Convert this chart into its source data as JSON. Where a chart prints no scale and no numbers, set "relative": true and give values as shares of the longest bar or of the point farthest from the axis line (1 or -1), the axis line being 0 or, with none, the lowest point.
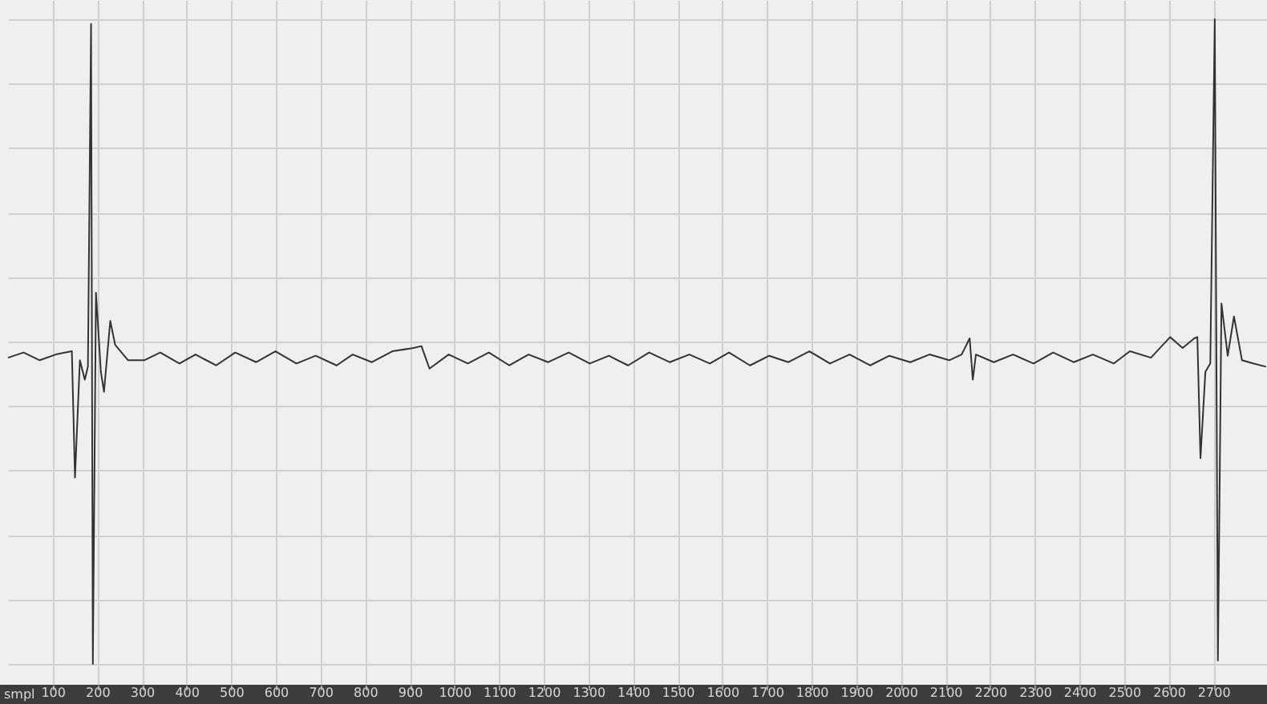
{
  "chart_data": {
    "type": "line",
    "relative": true,
    "xlabel": "smpl",
    "xlim": [
      0,
      2820
    ],
    "xticks": [
      100,
      200,
      300,
      400,
      500,
      600,
      700,
      800,
      900,
      1000,
      1100,
      1200,
      1300,
      1400,
      1500,
      1600,
      1700,
      1800,
      1900,
      2000,
      2100,
      2200,
      2300,
      2400,
      2500,
      2600,
      2700
    ],
    "grid": true,
    "series": [
      {
        "color": "#333333",
        "x": [
          0,
          35,
          71,
          107,
          143,
          150,
          161,
          172,
          179,
          186,
          190,
          197,
          208,
          215,
          229,
          240,
          269,
          305,
          341,
          384,
          420,
          466,
          509,
          556,
          599,
          646,
          689,
          736,
          772,
          815,
          861,
          908,
          926,
          944,
          987,
          1030,
          1077,
          1123,
          1166,
          1210,
          1256,
          1303,
          1346,
          1389,
          1436,
          1482,
          1526,
          1572,
          1615,
          1662,
          1705,
          1748,
          1795,
          1841,
          1885,
          1931,
          1974,
          2021,
          2064,
          2108,
          2136,
          2154,
          2161,
          2168,
          2208,
          2251,
          2297,
          2341,
          2387,
          2430,
          2477,
          2513,
          2560,
          2603,
          2631,
          2657,
          2664,
          2671,
          2682,
          2693,
          2703,
          2710,
          2718,
          2732,
          2746,
          2764,
          2789,
          2818
        ],
        "values": [
          0.475,
          0.483,
          0.471,
          0.48,
          0.485,
          0.289,
          0.471,
          0.441,
          0.461,
          0.993,
          0,
          0.576,
          0.453,
          0.422,
          0.532,
          0.495,
          0.471,
          0.471,
          0.483,
          0.466,
          0.48,
          0.463,
          0.483,
          0.468,
          0.485,
          0.466,
          0.478,
          0.463,
          0.48,
          0.468,
          0.485,
          0.49,
          0.493,
          0.458,
          0.48,
          0.466,
          0.483,
          0.463,
          0.48,
          0.468,
          0.483,
          0.466,
          0.478,
          0.463,
          0.483,
          0.468,
          0.48,
          0.466,
          0.483,
          0.463,
          0.478,
          0.468,
          0.485,
          0.466,
          0.48,
          0.463,
          0.478,
          0.468,
          0.48,
          0.471,
          0.48,
          0.505,
          0.441,
          0.48,
          0.468,
          0.48,
          0.466,
          0.483,
          0.468,
          0.48,
          0.466,
          0.485,
          0.475,
          0.507,
          0.49,
          0.505,
          0.507,
          0.319,
          0.453,
          0.466,
          1,
          0.005,
          0.559,
          0.478,
          0.539,
          0.471,
          0.466,
          0.461
        ]
      }
    ]
  }
}
